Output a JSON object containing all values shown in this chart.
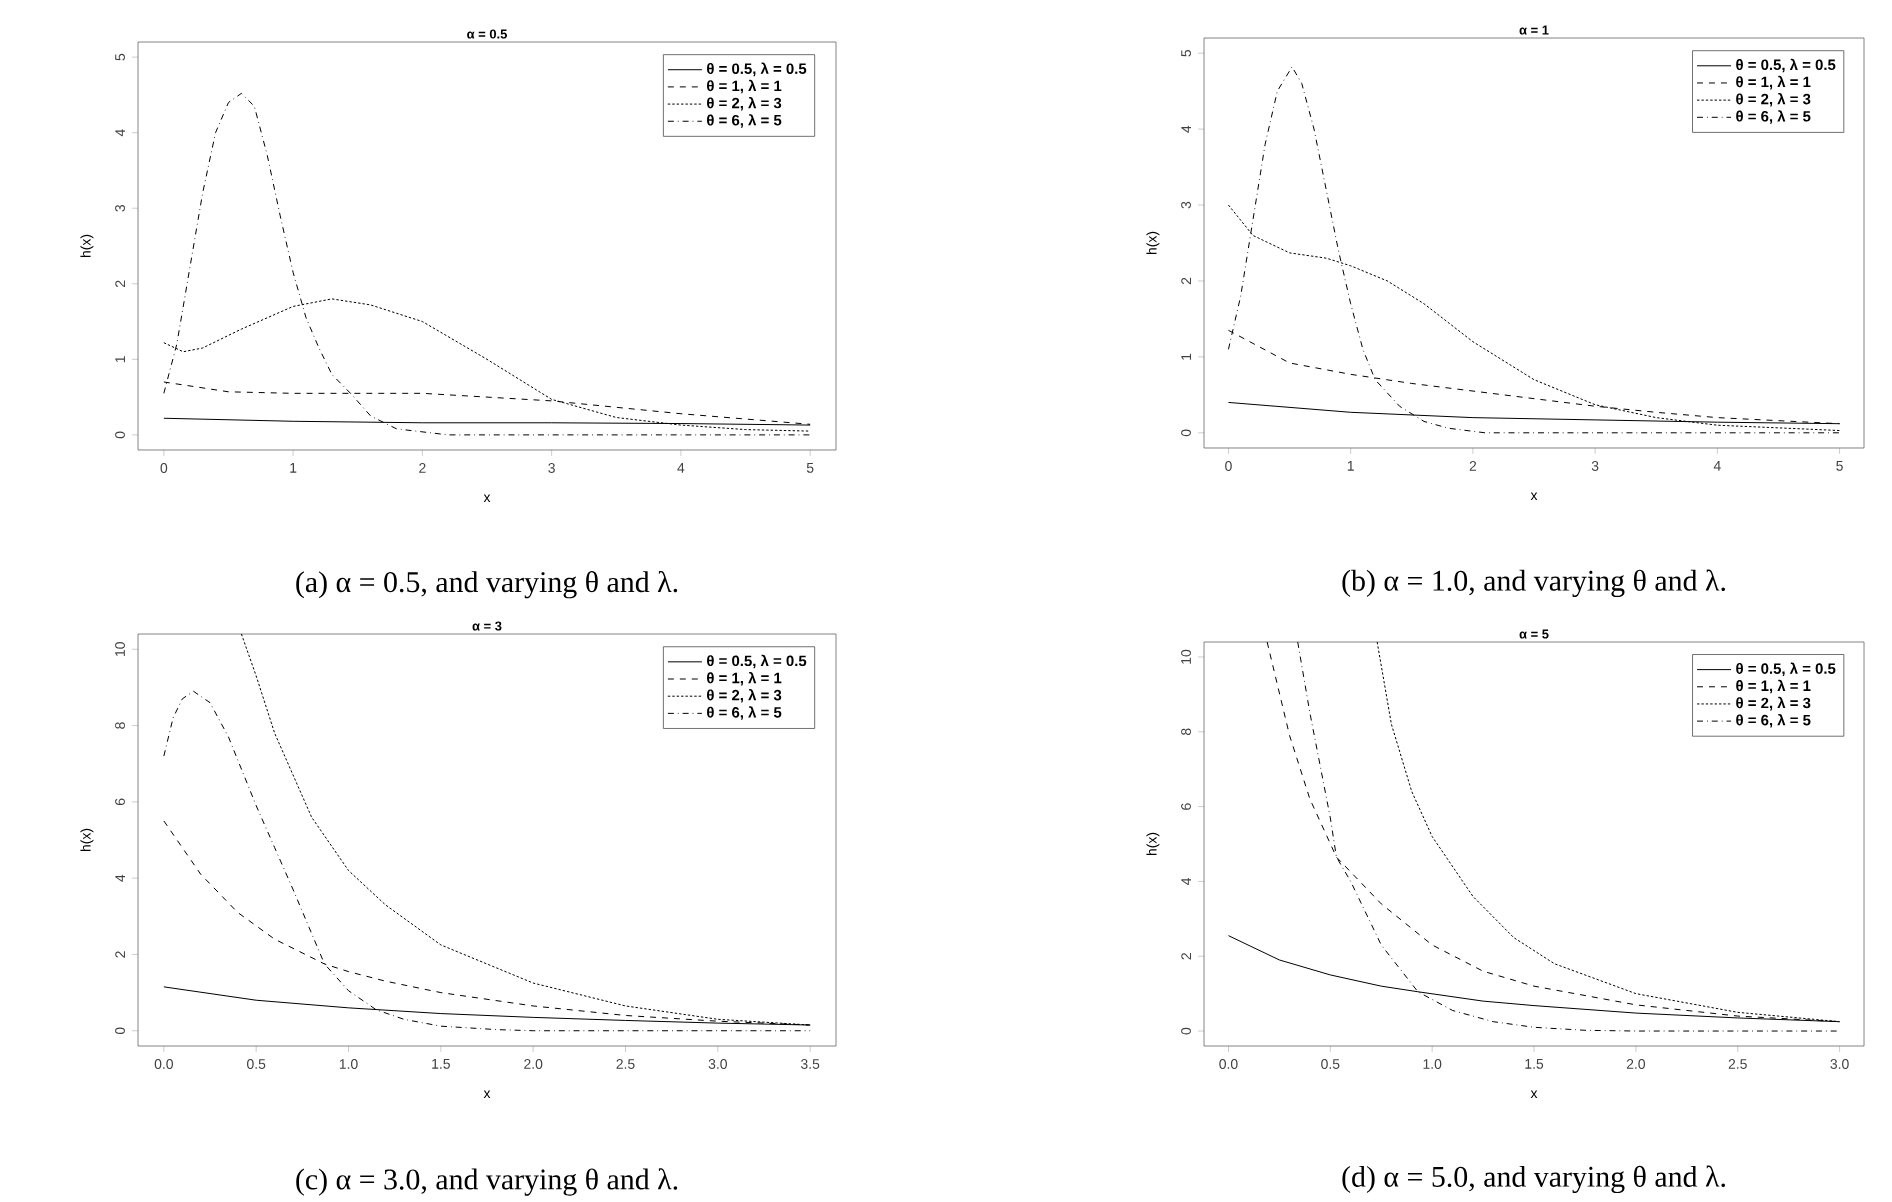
{
  "chart_data": [
    {
      "type": "line",
      "title": "α = 0.5",
      "xlabel": "x",
      "ylabel": "h(x)",
      "annotations": [
        "(a) α = 0.5, and varying θ and λ."
      ],
      "xlim": [
        -0.2,
        5.2
      ],
      "ylim": [
        -0.2,
        5.2
      ],
      "xticks": [
        0,
        1,
        2,
        3,
        4,
        5
      ],
      "yticks": [
        0,
        1,
        2,
        3,
        4,
        5
      ],
      "legend": "top right",
      "series": [
        {
          "name": "θ = 0.5, λ = 0.5",
          "color": "#000000",
          "line_style": "solid",
          "x": [
            0,
            1,
            2,
            3,
            4,
            5
          ],
          "values": [
            0.22,
            0.18,
            0.16,
            0.16,
            0.15,
            0.13
          ]
        },
        {
          "name": "θ = 1, λ = 1",
          "color": "#000000",
          "line_style": "dashed",
          "x": [
            0,
            0.5,
            1,
            2,
            3,
            4,
            5
          ],
          "values": [
            0.7,
            0.57,
            0.55,
            0.55,
            0.45,
            0.28,
            0.14
          ]
        },
        {
          "name": "θ = 2, λ = 3",
          "color": "#000000",
          "line_style": "dotted",
          "x": [
            0,
            0.15,
            0.3,
            0.6,
            1,
            1.3,
            1.6,
            2,
            2.5,
            3,
            3.5,
            4,
            4.5,
            5
          ],
          "values": [
            1.22,
            1.1,
            1.15,
            1.4,
            1.7,
            1.8,
            1.72,
            1.5,
            1.0,
            0.47,
            0.23,
            0.13,
            0.07,
            0.05
          ]
        },
        {
          "name": "θ = 6, λ = 5",
          "color": "#000000",
          "line_style": "dashdot",
          "x": [
            0,
            0.1,
            0.2,
            0.3,
            0.4,
            0.5,
            0.6,
            0.7,
            0.8,
            0.9,
            1.0,
            1.1,
            1.2,
            1.3,
            1.45,
            1.6,
            1.8,
            2.2,
            5
          ],
          "values": [
            0.55,
            1.2,
            2.2,
            3.2,
            4.0,
            4.4,
            4.52,
            4.35,
            3.7,
            2.9,
            2.15,
            1.55,
            1.15,
            0.8,
            0.54,
            0.25,
            0.08,
            0.0,
            0.0
          ]
        }
      ]
    },
    {
      "type": "line",
      "title": "α = 1",
      "xlabel": "x",
      "ylabel": "h(x)",
      "annotations": [
        "(b) α = 1.0, and varying θ and λ."
      ],
      "xlim": [
        -0.2,
        5.2
      ],
      "ylim": [
        -0.2,
        5.2
      ],
      "xticks": [
        0,
        1,
        2,
        3,
        4,
        5
      ],
      "yticks": [
        0,
        1,
        2,
        3,
        4,
        5
      ],
      "legend": "top right",
      "series": [
        {
          "name": "θ = 0.5, λ = 0.5",
          "color": "#000000",
          "line_style": "solid",
          "x": [
            0,
            1,
            2,
            3,
            4,
            5
          ],
          "values": [
            0.4,
            0.27,
            0.2,
            0.17,
            0.14,
            0.12
          ]
        },
        {
          "name": "θ = 1, λ = 1",
          "color": "#000000",
          "line_style": "dashed",
          "x": [
            0,
            0.5,
            1,
            1.5,
            2,
            2.5,
            3,
            3.5,
            4,
            5
          ],
          "values": [
            1.35,
            0.92,
            0.77,
            0.65,
            0.55,
            0.45,
            0.35,
            0.27,
            0.2,
            0.12
          ]
        },
        {
          "name": "θ = 2, λ = 3",
          "color": "#000000",
          "line_style": "dotted",
          "x": [
            0,
            0.2,
            0.5,
            0.8,
            1,
            1.3,
            1.6,
            2,
            2.5,
            3,
            3.5,
            4,
            5
          ],
          "values": [
            3.0,
            2.6,
            2.37,
            2.3,
            2.2,
            2.0,
            1.7,
            1.2,
            0.7,
            0.37,
            0.2,
            0.1,
            0.03
          ]
        },
        {
          "name": "θ = 6, λ = 5",
          "color": "#000000",
          "line_style": "dashdot",
          "x": [
            0,
            0.1,
            0.2,
            0.3,
            0.4,
            0.52,
            0.6,
            0.7,
            0.8,
            0.9,
            1,
            1.1,
            1.2,
            1.4,
            1.6,
            1.8,
            2.1,
            5
          ],
          "values": [
            1.1,
            1.8,
            2.8,
            3.8,
            4.5,
            4.82,
            4.6,
            4.0,
            3.2,
            2.4,
            1.7,
            1.1,
            0.7,
            0.35,
            0.15,
            0.06,
            0.0,
            0.0
          ]
        }
      ]
    },
    {
      "type": "line",
      "title": "α = 3",
      "xlabel": "x",
      "ylabel": "h(x)",
      "annotations": [
        "(c) α = 3.0, and varying θ and λ."
      ],
      "xlim": [
        -0.14,
        3.64
      ],
      "ylim": [
        -0.4,
        10.4
      ],
      "xticks": [
        {
          "value": 0,
          "label": "0.0"
        },
        0.5,
        {
          "value": 1,
          "label": "1.0"
        },
        1.5,
        {
          "value": 2,
          "label": "2.0"
        },
        2.5,
        {
          "value": 3,
          "label": "3.0"
        },
        3.5
      ],
      "yticks": [
        0,
        2,
        4,
        6,
        8,
        10
      ],
      "legend": "top right",
      "series": [
        {
          "name": "θ = 0.5, λ = 0.5",
          "color": "#000000",
          "line_style": "solid",
          "x": [
            0,
            0.5,
            1,
            1.5,
            2,
            2.5,
            3,
            3.5
          ],
          "values": [
            1.15,
            0.8,
            0.6,
            0.45,
            0.35,
            0.27,
            0.2,
            0.15
          ]
        },
        {
          "name": "θ = 1, λ = 1",
          "color": "#000000",
          "line_style": "dashed",
          "x": [
            0,
            0.2,
            0.4,
            0.6,
            0.87,
            1,
            1.2,
            1.5,
            2,
            2.5,
            3,
            3.5
          ],
          "values": [
            5.5,
            4.1,
            3.1,
            2.4,
            1.75,
            1.55,
            1.3,
            1.0,
            0.65,
            0.4,
            0.25,
            0.15
          ]
        },
        {
          "name": "θ = 2, λ = 3",
          "color": "#000000",
          "line_style": "dotted",
          "x": [
            0.42,
            0.5,
            0.6,
            0.8,
            1,
            1.2,
            1.5,
            2,
            2.5,
            3,
            3.5
          ],
          "values": [
            10.4,
            9.3,
            7.8,
            5.6,
            4.2,
            3.3,
            2.25,
            1.25,
            0.65,
            0.3,
            0.15
          ]
        },
        {
          "name": "θ = 6, λ = 5",
          "color": "#000000",
          "line_style": "dashdot",
          "x": [
            0,
            0.05,
            0.1,
            0.16,
            0.25,
            0.35,
            0.5,
            0.6,
            0.7,
            0.87,
            1,
            1.15,
            1.3,
            1.5,
            1.8,
            2,
            3.5
          ],
          "values": [
            7.2,
            8.2,
            8.7,
            8.9,
            8.6,
            7.7,
            5.9,
            4.8,
            3.7,
            1.75,
            1.05,
            0.55,
            0.3,
            0.12,
            0.03,
            0.0,
            0.0
          ]
        }
      ]
    },
    {
      "type": "line",
      "title": "α = 5",
      "xlabel": "x",
      "ylabel": "h(x)",
      "annotations": [
        "(d) α = 5.0, and varying θ and λ."
      ],
      "xlim": [
        -0.12,
        3.12
      ],
      "ylim": [
        -0.4,
        10.4
      ],
      "xticks": [
        {
          "value": 0,
          "label": "0.0"
        },
        0.5,
        {
          "value": 1,
          "label": "1.0"
        },
        1.5,
        {
          "value": 2,
          "label": "2.0"
        },
        2.5,
        {
          "value": 3,
          "label": "3.0"
        }
      ],
      "yticks": [
        0,
        2,
        4,
        6,
        8,
        10
      ],
      "legend": "top right",
      "series": [
        {
          "name": "θ = 0.5, λ = 0.5",
          "color": "#000000",
          "line_style": "solid",
          "x": [
            0,
            0.25,
            0.5,
            0.75,
            0.93,
            1.25,
            1.5,
            2,
            2.5,
            3
          ],
          "values": [
            2.55,
            1.9,
            1.5,
            1.2,
            1.05,
            0.8,
            0.68,
            0.48,
            0.35,
            0.25
          ]
        },
        {
          "name": "θ = 1, λ = 1",
          "color": "#000000",
          "line_style": "dashed",
          "x": [
            0.19,
            0.3,
            0.4,
            0.53,
            0.75,
            1,
            1.25,
            1.5,
            2,
            2.5,
            3
          ],
          "values": [
            10.4,
            7.9,
            6.2,
            4.65,
            3.4,
            2.3,
            1.6,
            1.2,
            0.7,
            0.4,
            0.25
          ]
        },
        {
          "name": "θ = 2, λ = 3",
          "color": "#000000",
          "line_style": "dotted",
          "x": [
            0.73,
            0.8,
            0.9,
            1,
            1.2,
            1.4,
            1.6,
            2,
            2.5,
            3
          ],
          "values": [
            10.4,
            8.2,
            6.4,
            5.2,
            3.6,
            2.5,
            1.8,
            1.0,
            0.5,
            0.25
          ]
        },
        {
          "name": "θ = 6, λ = 5",
          "color": "#000000",
          "line_style": "dashdot",
          "x": [
            0.34,
            0.4,
            0.5,
            0.53,
            0.6,
            0.75,
            0.93,
            1.1,
            1.3,
            1.5,
            1.75,
            2,
            3
          ],
          "values": [
            10.4,
            8.5,
            5.7,
            4.65,
            4.0,
            2.3,
            1.05,
            0.55,
            0.25,
            0.1,
            0.02,
            0.0,
            0.0
          ]
        }
      ]
    }
  ]
}
